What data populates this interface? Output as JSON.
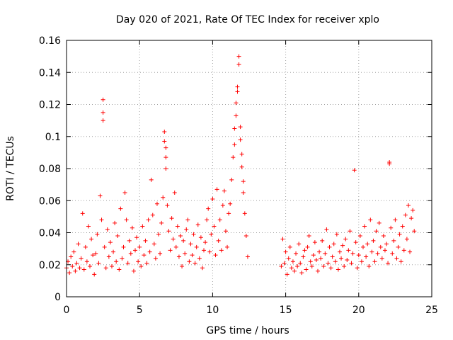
{
  "chart_data": {
    "type": "scatter",
    "title": "Day 020 of 2021, Rate Of TEC Index for receiver xplo",
    "xlabel": "GPS time / hours",
    "ylabel": "ROTI / TECUs",
    "xlim": [
      0,
      25
    ],
    "ylim": [
      0,
      0.16
    ],
    "x_ticks": [
      "0",
      "5",
      "10",
      "15",
      "20",
      "25"
    ],
    "y_ticks": [
      "0",
      "0.02",
      "0.04",
      "0.06",
      "0.08",
      "0.1",
      "0.12",
      "0.14",
      "0.16"
    ],
    "grid": true,
    "marker": "+",
    "color": "#ff0000",
    "series": [
      {
        "points": [
          [
            0.0,
            0.018
          ],
          [
            0.1,
            0.022
          ],
          [
            0.2,
            0.015
          ],
          [
            0.3,
            0.025
          ],
          [
            0.4,
            0.019
          ],
          [
            0.5,
            0.028
          ],
          [
            0.6,
            0.016
          ],
          [
            0.7,
            0.021
          ],
          [
            0.8,
            0.033
          ],
          [
            0.9,
            0.018
          ],
          [
            1.0,
            0.024
          ],
          [
            1.1,
            0.052
          ],
          [
            1.2,
            0.017
          ],
          [
            1.3,
            0.031
          ],
          [
            1.4,
            0.022
          ],
          [
            1.5,
            0.044
          ],
          [
            1.6,
            0.019
          ],
          [
            1.7,
            0.036
          ],
          [
            1.8,
            0.026
          ],
          [
            1.9,
            0.014
          ],
          [
            2.0,
            0.027
          ],
          [
            2.1,
            0.039
          ],
          [
            2.2,
            0.021
          ],
          [
            2.3,
            0.063
          ],
          [
            2.4,
            0.048
          ],
          [
            2.5,
            0.123
          ],
          [
            2.5,
            0.115
          ],
          [
            2.5,
            0.11
          ],
          [
            2.6,
            0.031
          ],
          [
            2.7,
            0.018
          ],
          [
            2.8,
            0.042
          ],
          [
            2.9,
            0.025
          ],
          [
            3.0,
            0.034
          ],
          [
            3.1,
            0.019
          ],
          [
            3.2,
            0.028
          ],
          [
            3.3,
            0.046
          ],
          [
            3.4,
            0.022
          ],
          [
            3.5,
            0.038
          ],
          [
            3.6,
            0.017
          ],
          [
            3.7,
            0.055
          ],
          [
            3.8,
            0.024
          ],
          [
            3.9,
            0.031
          ],
          [
            4.0,
            0.065
          ],
          [
            4.1,
            0.048
          ],
          [
            4.2,
            0.021
          ],
          [
            4.3,
            0.035
          ],
          [
            4.4,
            0.027
          ],
          [
            4.5,
            0.043
          ],
          [
            4.6,
            0.016
          ],
          [
            4.7,
            0.029
          ],
          [
            4.8,
            0.037
          ],
          [
            4.9,
            0.022
          ],
          [
            5.0,
            0.031
          ],
          [
            5.1,
            0.019
          ],
          [
            5.2,
            0.044
          ],
          [
            5.3,
            0.026
          ],
          [
            5.4,
            0.035
          ],
          [
            5.5,
            0.021
          ],
          [
            5.6,
            0.048
          ],
          [
            5.7,
            0.028
          ],
          [
            5.8,
            0.073
          ],
          [
            5.9,
            0.051
          ],
          [
            6.0,
            0.033
          ],
          [
            6.1,
            0.024
          ],
          [
            6.2,
            0.058
          ],
          [
            6.3,
            0.039
          ],
          [
            6.4,
            0.027
          ],
          [
            6.5,
            0.046
          ],
          [
            6.6,
            0.062
          ],
          [
            6.7,
            0.103
          ],
          [
            6.7,
            0.097
          ],
          [
            6.8,
            0.093
          ],
          [
            6.8,
            0.087
          ],
          [
            6.8,
            0.08
          ],
          [
            6.9,
            0.057
          ],
          [
            7.0,
            0.041
          ],
          [
            7.1,
            0.029
          ],
          [
            7.2,
            0.049
          ],
          [
            7.3,
            0.036
          ],
          [
            7.4,
            0.065
          ],
          [
            7.5,
            0.031
          ],
          [
            7.6,
            0.044
          ],
          [
            7.7,
            0.025
          ],
          [
            7.8,
            0.038
          ],
          [
            7.9,
            0.019
          ],
          [
            8.0,
            0.035
          ],
          [
            8.1,
            0.027
          ],
          [
            8.2,
            0.042
          ],
          [
            8.3,
            0.048
          ],
          [
            8.4,
            0.022
          ],
          [
            8.5,
            0.033
          ],
          [
            8.6,
            0.026
          ],
          [
            8.7,
            0.039
          ],
          [
            8.8,
            0.021
          ],
          [
            8.9,
            0.031
          ],
          [
            9.0,
            0.045
          ],
          [
            9.1,
            0.024
          ],
          [
            9.2,
            0.037
          ],
          [
            9.3,
            0.018
          ],
          [
            9.4,
            0.029
          ],
          [
            9.5,
            0.034
          ],
          [
            9.6,
            0.048
          ],
          [
            9.7,
            0.055
          ],
          [
            9.8,
            0.028
          ],
          [
            9.9,
            0.039
          ],
          [
            10.0,
            0.061
          ],
          [
            10.1,
            0.044
          ],
          [
            10.2,
            0.026
          ],
          [
            10.3,
            0.067
          ],
          [
            10.4,
            0.035
          ],
          [
            10.5,
            0.048
          ],
          [
            10.6,
            0.029
          ],
          [
            10.7,
            0.057
          ],
          [
            10.8,
            0.066
          ],
          [
            10.9,
            0.041
          ],
          [
            11.0,
            0.031
          ],
          [
            11.1,
            0.052
          ],
          [
            11.2,
            0.058
          ],
          [
            11.3,
            0.073
          ],
          [
            11.4,
            0.087
          ],
          [
            11.5,
            0.105
          ],
          [
            11.5,
            0.095
          ],
          [
            11.6,
            0.121
          ],
          [
            11.6,
            0.113
          ],
          [
            11.7,
            0.131
          ],
          [
            11.7,
            0.128
          ],
          [
            11.8,
            0.15
          ],
          [
            11.8,
            0.145
          ],
          [
            11.9,
            0.106
          ],
          [
            11.9,
            0.098
          ],
          [
            12.0,
            0.089
          ],
          [
            12.0,
            0.081
          ],
          [
            12.1,
            0.072
          ],
          [
            12.1,
            0.065
          ],
          [
            12.2,
            0.052
          ],
          [
            12.3,
            0.038
          ],
          [
            12.4,
            0.025
          ],
          [
            14.7,
            0.019
          ],
          [
            14.8,
            0.036
          ],
          [
            14.9,
            0.021
          ],
          [
            15.0,
            0.028
          ],
          [
            15.1,
            0.014
          ],
          [
            15.2,
            0.024
          ],
          [
            15.3,
            0.031
          ],
          [
            15.4,
            0.018
          ],
          [
            15.5,
            0.022
          ],
          [
            15.6,
            0.016
          ],
          [
            15.7,
            0.027
          ],
          [
            15.8,
            0.019
          ],
          [
            15.9,
            0.033
          ],
          [
            16.0,
            0.021
          ],
          [
            16.1,
            0.015
          ],
          [
            16.2,
            0.025
          ],
          [
            16.3,
            0.029
          ],
          [
            16.4,
            0.017
          ],
          [
            16.5,
            0.031
          ],
          [
            16.6,
            0.038
          ],
          [
            16.7,
            0.022
          ],
          [
            16.8,
            0.019
          ],
          [
            16.9,
            0.026
          ],
          [
            17.0,
            0.034
          ],
          [
            17.1,
            0.023
          ],
          [
            17.2,
            0.016
          ],
          [
            17.3,
            0.028
          ],
          [
            17.4,
            0.024
          ],
          [
            17.5,
            0.035
          ],
          [
            17.6,
            0.019
          ],
          [
            17.7,
            0.027
          ],
          [
            17.8,
            0.042
          ],
          [
            17.9,
            0.021
          ],
          [
            18.0,
            0.031
          ],
          [
            18.1,
            0.018
          ],
          [
            18.2,
            0.025
          ],
          [
            18.3,
            0.033
          ],
          [
            18.4,
            0.022
          ],
          [
            18.5,
            0.039
          ],
          [
            18.6,
            0.017
          ],
          [
            18.7,
            0.028
          ],
          [
            18.8,
            0.024
          ],
          [
            18.9,
            0.032
          ],
          [
            19.0,
            0.019
          ],
          [
            19.1,
            0.036
          ],
          [
            19.2,
            0.023
          ],
          [
            19.3,
            0.029
          ],
          [
            19.4,
            0.041
          ],
          [
            19.5,
            0.021
          ],
          [
            19.6,
            0.027
          ],
          [
            19.7,
            0.079
          ],
          [
            19.8,
            0.034
          ],
          [
            19.9,
            0.018
          ],
          [
            20.0,
            0.026
          ],
          [
            20.1,
            0.038
          ],
          [
            20.2,
            0.022
          ],
          [
            20.3,
            0.031
          ],
          [
            20.4,
            0.044
          ],
          [
            20.5,
            0.025
          ],
          [
            20.6,
            0.033
          ],
          [
            20.7,
            0.019
          ],
          [
            20.8,
            0.048
          ],
          [
            20.9,
            0.028
          ],
          [
            21.0,
            0.035
          ],
          [
            21.1,
            0.022
          ],
          [
            21.2,
            0.041
          ],
          [
            21.3,
            0.027
          ],
          [
            21.4,
            0.046
          ],
          [
            21.5,
            0.031
          ],
          [
            21.6,
            0.024
          ],
          [
            21.7,
            0.038
          ],
          [
            21.8,
            0.029
          ],
          [
            21.9,
            0.033
          ],
          [
            22.0,
            0.021
          ],
          [
            22.1,
            0.084
          ],
          [
            22.1,
            0.083
          ],
          [
            22.2,
            0.043
          ],
          [
            22.3,
            0.027
          ],
          [
            22.4,
            0.035
          ],
          [
            22.5,
            0.048
          ],
          [
            22.6,
            0.024
          ],
          [
            22.7,
            0.031
          ],
          [
            22.8,
            0.039
          ],
          [
            22.9,
            0.022
          ],
          [
            23.0,
            0.044
          ],
          [
            23.1,
            0.029
          ],
          [
            23.2,
            0.051
          ],
          [
            23.3,
            0.036
          ],
          [
            23.4,
            0.057
          ],
          [
            23.5,
            0.028
          ],
          [
            23.6,
            0.049
          ],
          [
            23.7,
            0.054
          ],
          [
            23.8,
            0.041
          ]
        ]
      }
    ]
  }
}
